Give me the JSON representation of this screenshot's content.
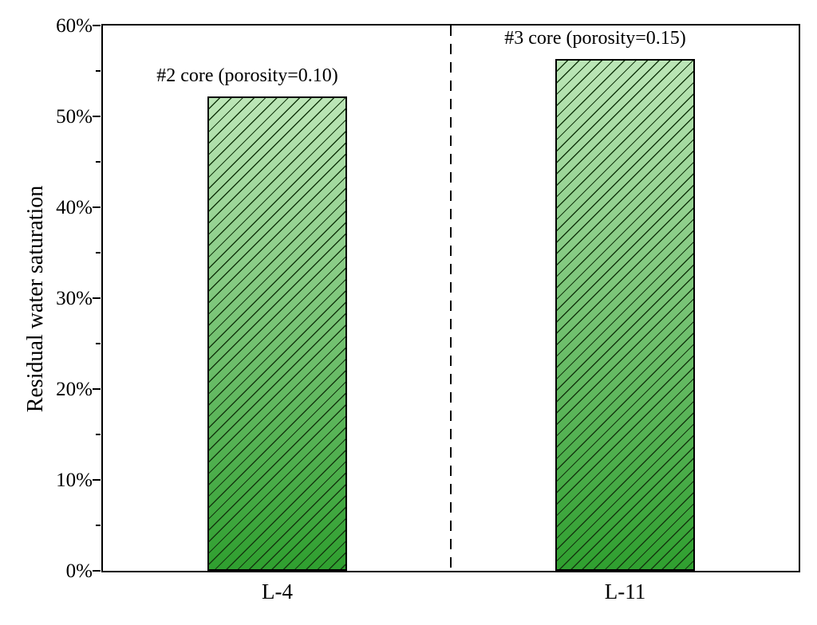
{
  "chart_data": {
    "type": "bar",
    "title": "",
    "xlabel": "",
    "ylabel": "Residual water saturation",
    "ylim": [
      0,
      60
    ],
    "y_unit": "percent",
    "categories": [
      "L-4",
      "L-11"
    ],
    "values": [
      52.2,
      56.3
    ],
    "bar_annotations": [
      "#2 core (porosity=0.10)",
      "#3 core (porosity=0.15)"
    ],
    "yticks_major": [
      0,
      10,
      20,
      30,
      40,
      50,
      60
    ],
    "ytick_labels": [
      "0%",
      "10%",
      "20%",
      "30%",
      "40%",
      "50%",
      "60%"
    ],
    "yticks_minor": [
      5,
      15,
      25,
      35,
      45,
      55
    ],
    "grid": false,
    "legend_position": "none",
    "hatch_pattern": "forward-diagonal-slash",
    "separator_line": {
      "orientation": "vertical",
      "style": "dashed",
      "between_categories": [
        "L-4",
        "L-11"
      ]
    },
    "colors": {
      "background": "#ffffff",
      "axis_line": "#000000",
      "text": "#000000",
      "bar_gradient_top": "#bce6b7",
      "bar_gradient_bottom": "#2f9f2f",
      "bar_border": "#000000",
      "hatch_line": "#14380f",
      "separator": "#000000"
    }
  }
}
